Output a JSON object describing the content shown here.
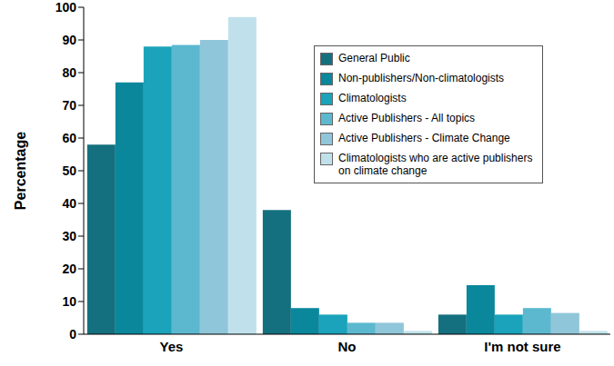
{
  "chart_data": {
    "type": "bar",
    "categories": [
      "Yes",
      "No",
      "I'm not sure"
    ],
    "y_label": "Percentage",
    "ylim": [
      0,
      100
    ],
    "yticks": [
      0,
      10,
      20,
      30,
      40,
      50,
      60,
      70,
      80,
      90,
      100
    ],
    "grid": false,
    "legend": "upper right",
    "series": [
      {
        "name": "General Public",
        "color": "#14707f",
        "values": [
          58,
          38,
          6
        ]
      },
      {
        "name": "Non-publishers/Non-climatologists",
        "color": "#0b879c",
        "values": [
          77,
          8,
          15
        ]
      },
      {
        "name": "Climatologists",
        "color": "#1aa3ba",
        "values": [
          88,
          6,
          6
        ]
      },
      {
        "name": "Active Publishers - All topics",
        "color": "#5bb8cf",
        "values": [
          88.5,
          3.5,
          8
        ]
      },
      {
        "name": "Active Publishers - Climate Change",
        "color": "#90c6d9",
        "values": [
          90,
          3.5,
          6.5
        ]
      },
      {
        "name": "Climatologists who are active publishers on climate change",
        "color": "#c0e1ec",
        "values": [
          97,
          1,
          1
        ]
      }
    ]
  }
}
